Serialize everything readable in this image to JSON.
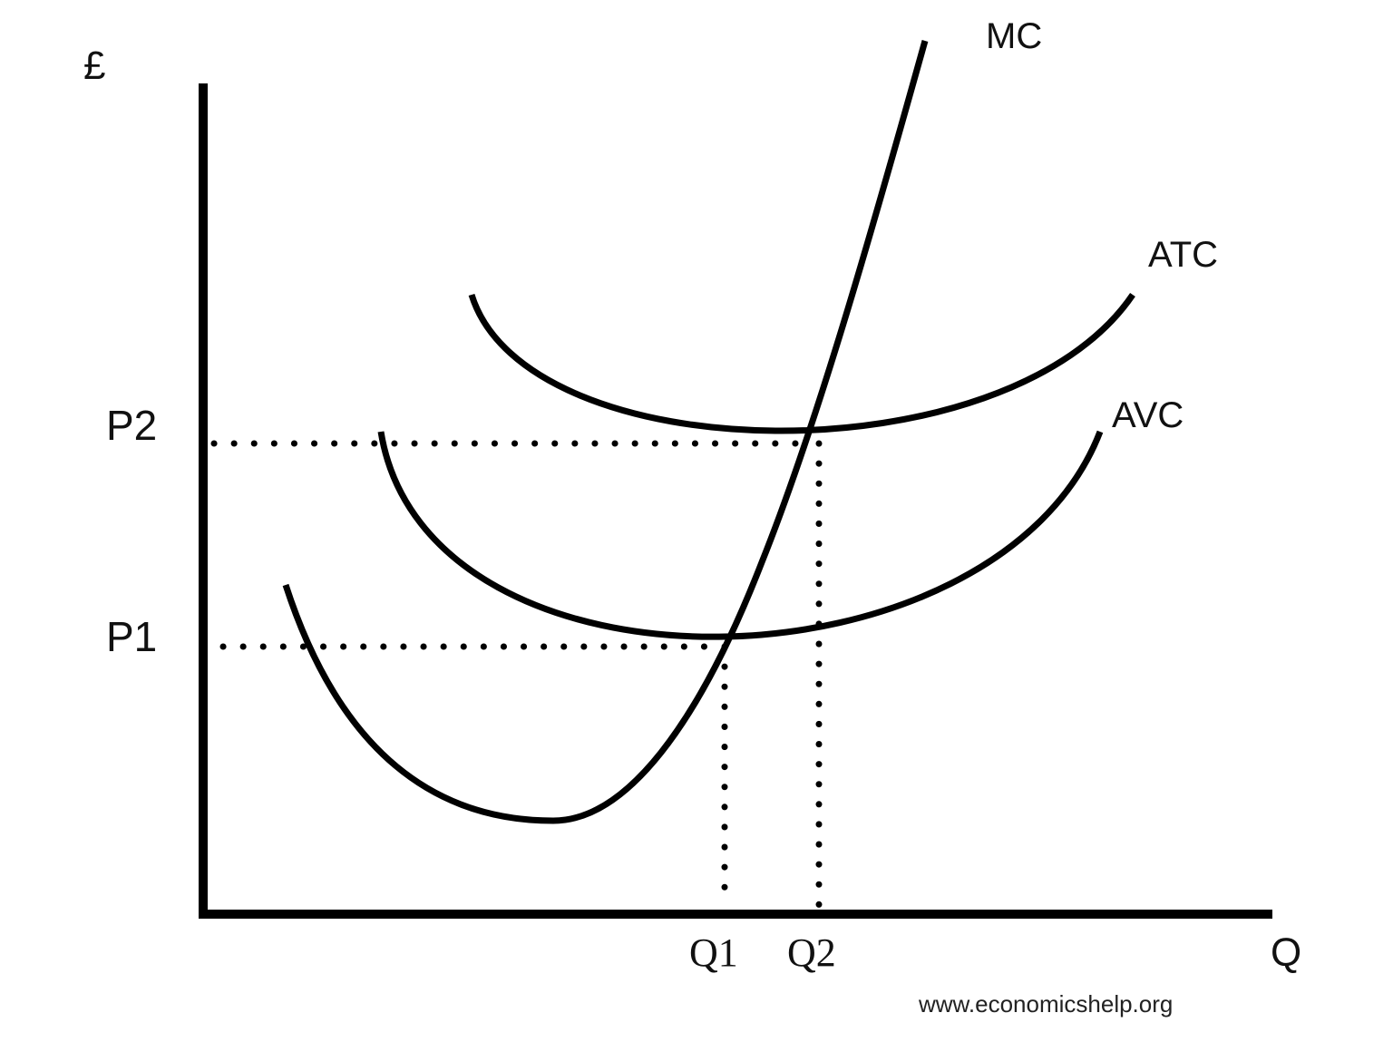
{
  "axes": {
    "y_label": "£",
    "x_label": "Q"
  },
  "curves": {
    "mc": "MC",
    "atc": "ATC",
    "avc": "AVC"
  },
  "prices": {
    "p1": "P1",
    "p2": "P2"
  },
  "quantities": {
    "q1": "Q1",
    "q2": "Q2"
  },
  "credit": "www.economicshelp.org",
  "colors": {
    "line": "#000000",
    "background": "#ffffff",
    "credit_text": "#222222"
  }
}
